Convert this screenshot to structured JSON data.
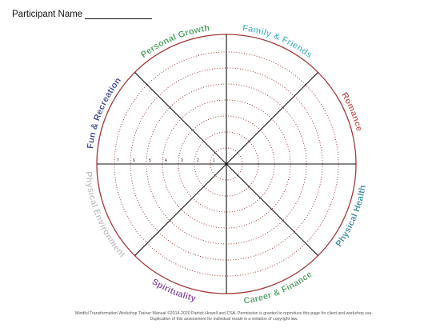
{
  "header": {
    "participant_label": "Participant Name"
  },
  "wheel": {
    "segments": [
      {
        "label": "Family & Friends",
        "color": "#4fb3c4"
      },
      {
        "label": "Romance",
        "color": "#c0504d"
      },
      {
        "label": "Physical Health",
        "color": "#31859c"
      },
      {
        "label": "Career & Finance",
        "color": "#4a9a5a"
      },
      {
        "label": "Spirituality",
        "color": "#7b3f9e"
      },
      {
        "label": "Physical Environment",
        "color": "#bbbbbb"
      },
      {
        "label": "Fun & Recreation",
        "color": "#2f3b8c"
      },
      {
        "label": "Personal Growth",
        "color": "#3c9a52"
      }
    ],
    "ring_numbers": [
      "7",
      "6",
      "5",
      "4",
      "3",
      "2",
      "1"
    ],
    "outer_ring_color": "#a33a3a",
    "dotted_ring_color": "#a33a3a",
    "spoke_color": "#111111"
  },
  "footer": {
    "line1": "Mindful Transformation Workshop Trainer Manual ©2014-2020 Patrick Howell and CSA. Permission is granted to reproduce this page for client and workshop use.",
    "line2": "Duplication of this assessment for individual resale is a violation of copyright law."
  }
}
